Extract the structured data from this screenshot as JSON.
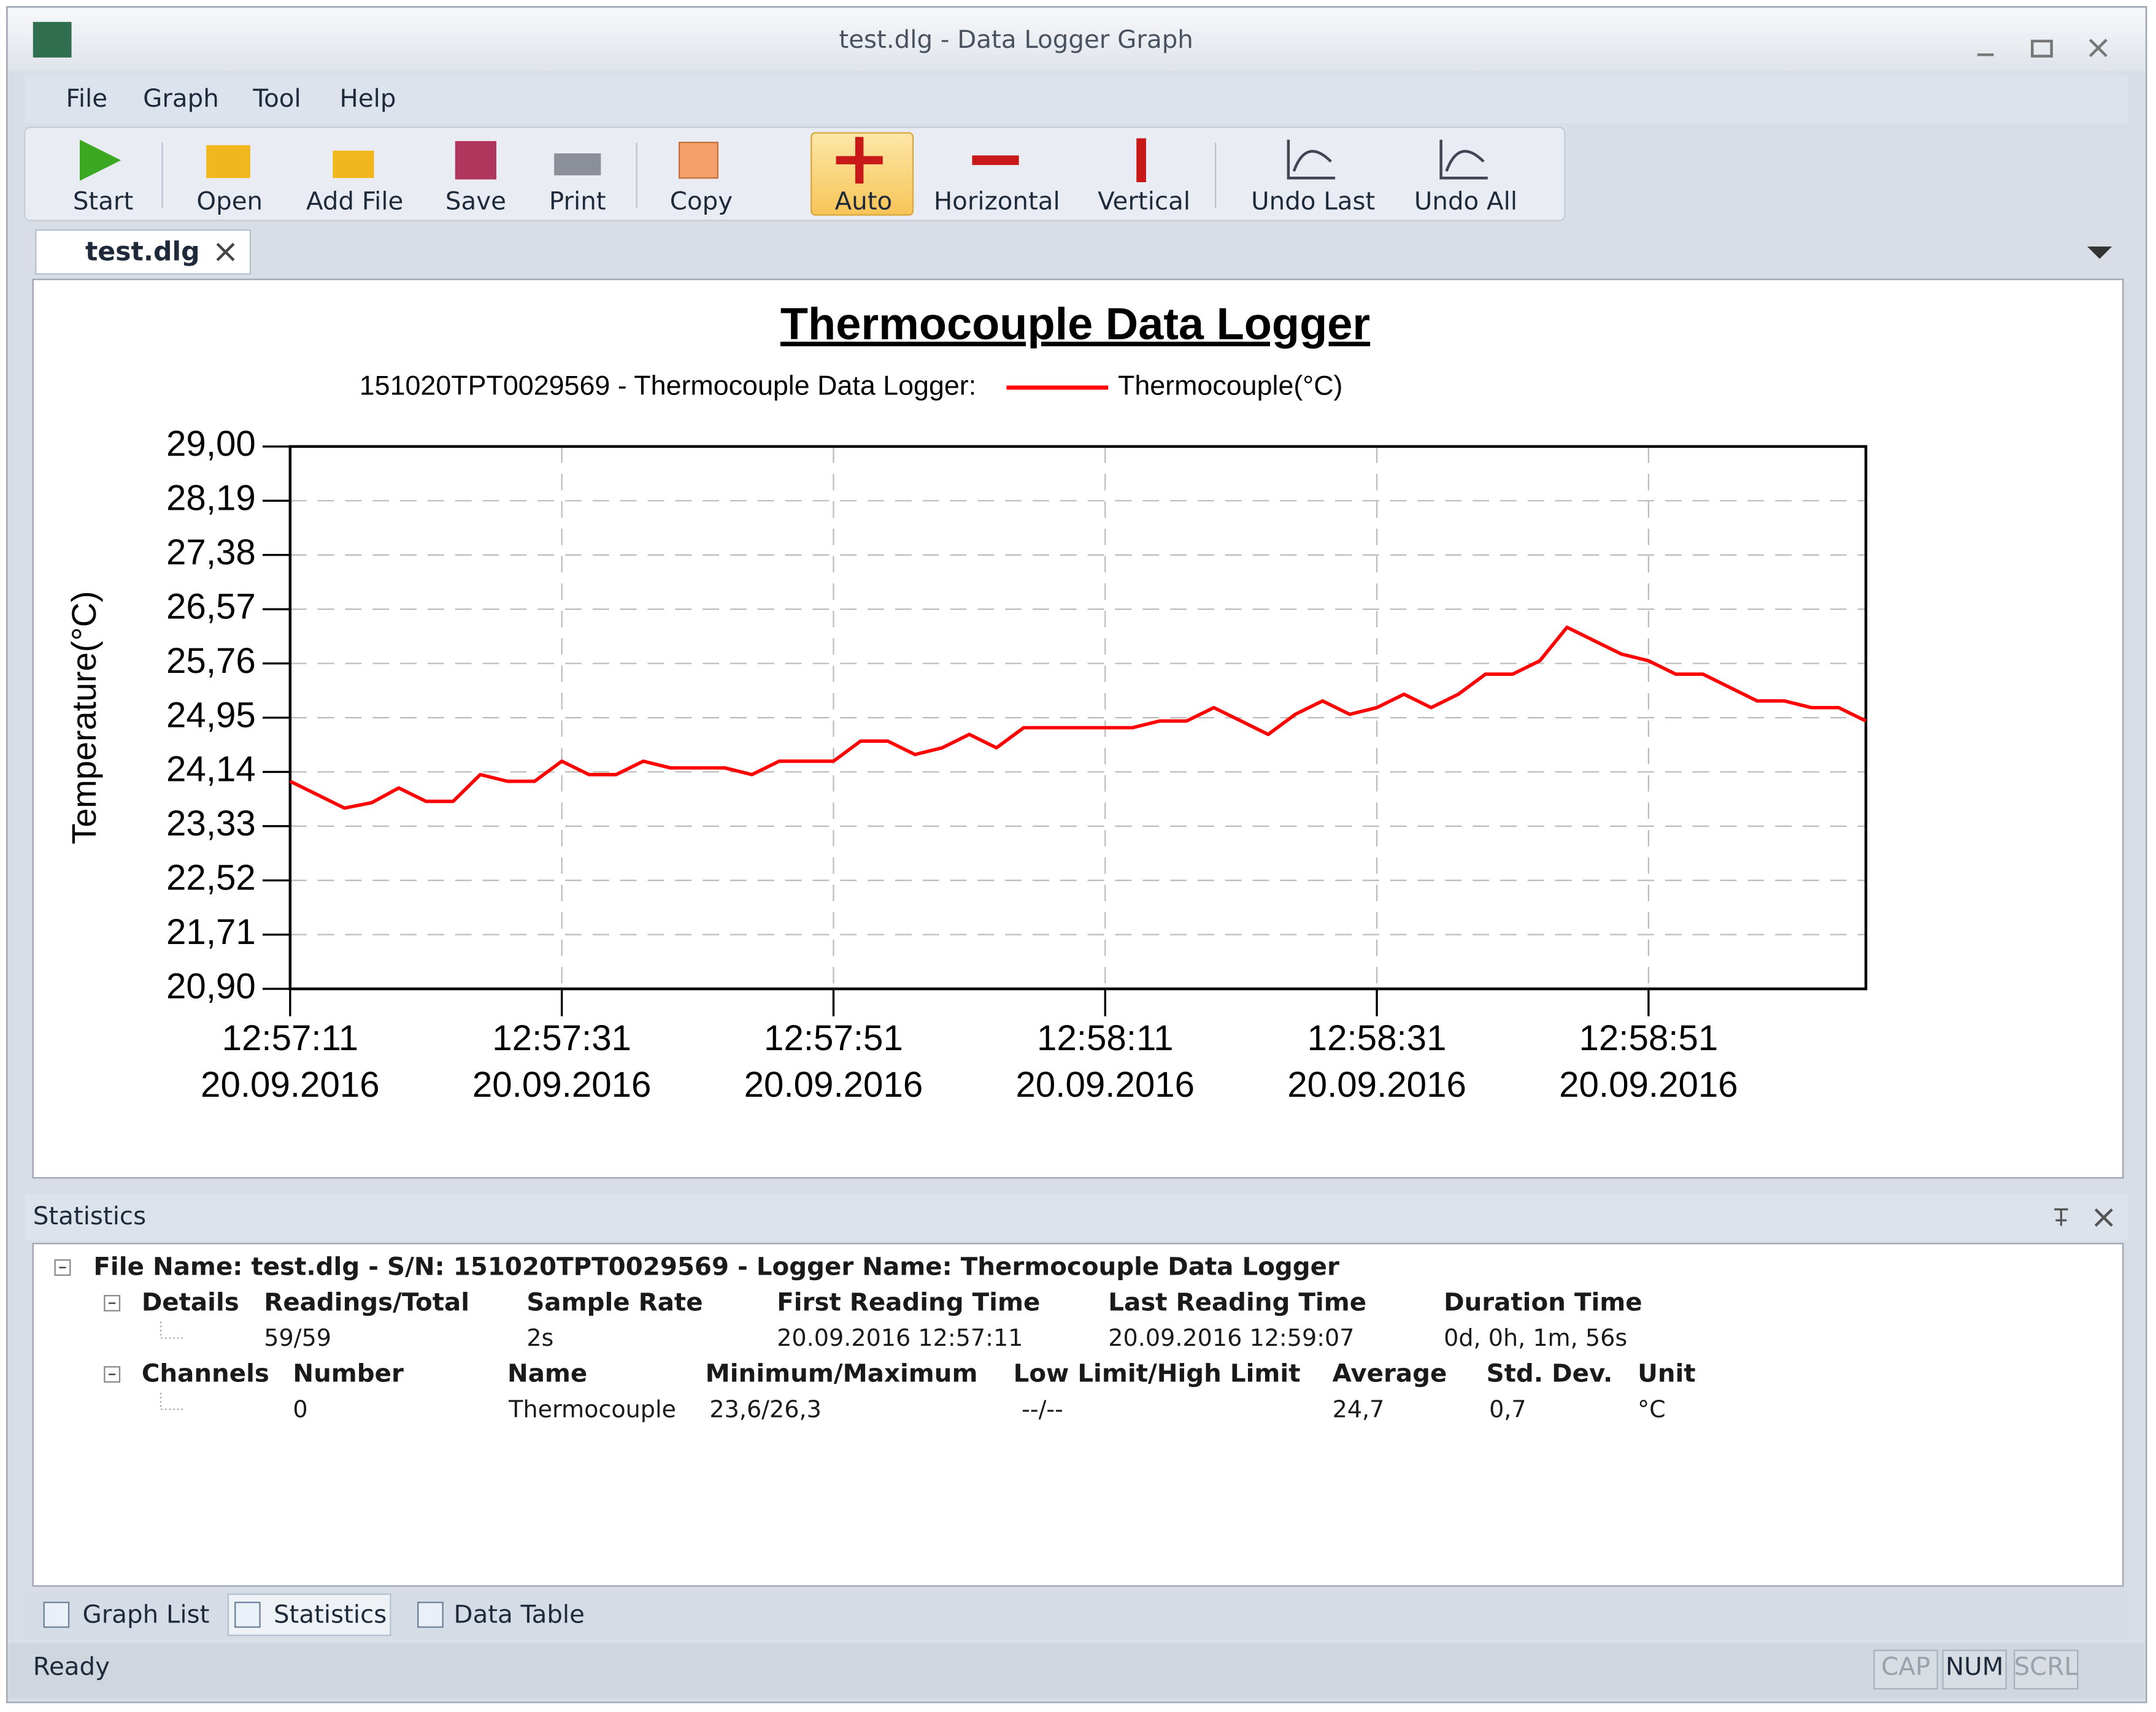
{
  "window": {
    "title": "test.dlg - Data Logger Graph"
  },
  "menu": [
    "File",
    "Graph",
    "Tool",
    "Help"
  ],
  "toolbar": [
    "Start",
    "Open",
    "Add File",
    "Save",
    "Print",
    "Copy",
    "Auto",
    "Horizontal",
    "Vertical",
    "Undo Last",
    "Undo All"
  ],
  "document_tab": "test.dlg",
  "chart_data": {
    "type": "line",
    "title": "Thermocouple Data Logger",
    "subtitle": "151020TPT0029569 - Thermocouple Data Logger:",
    "y_label": "Temperature(°C)",
    "x": [
      "20.09.2016 12:57:11",
      "20.09.2016 12:57:13",
      "20.09.2016 12:57:15",
      "20.09.2016 12:57:17",
      "20.09.2016 12:57:19",
      "20.09.2016 12:57:21",
      "20.09.2016 12:57:23",
      "20.09.2016 12:57:25",
      "20.09.2016 12:57:27",
      "20.09.2016 12:57:29",
      "20.09.2016 12:57:31",
      "20.09.2016 12:57:33",
      "20.09.2016 12:57:35",
      "20.09.2016 12:57:37",
      "20.09.2016 12:57:39",
      "20.09.2016 12:57:41",
      "20.09.2016 12:57:43",
      "20.09.2016 12:57:45",
      "20.09.2016 12:57:47",
      "20.09.2016 12:57:49",
      "20.09.2016 12:57:51",
      "20.09.2016 12:57:53",
      "20.09.2016 12:57:55",
      "20.09.2016 12:57:57",
      "20.09.2016 12:57:59",
      "20.09.2016 12:58:01",
      "20.09.2016 12:58:03",
      "20.09.2016 12:58:05",
      "20.09.2016 12:58:07",
      "20.09.2016 12:58:09",
      "20.09.2016 12:58:11",
      "20.09.2016 12:58:13",
      "20.09.2016 12:58:15",
      "20.09.2016 12:58:17",
      "20.09.2016 12:58:19",
      "20.09.2016 12:58:21",
      "20.09.2016 12:58:23",
      "20.09.2016 12:58:25",
      "20.09.2016 12:58:27",
      "20.09.2016 12:58:29",
      "20.09.2016 12:58:31",
      "20.09.2016 12:58:33",
      "20.09.2016 12:58:35",
      "20.09.2016 12:58:37",
      "20.09.2016 12:58:39",
      "20.09.2016 12:58:41",
      "20.09.2016 12:58:43",
      "20.09.2016 12:58:45",
      "20.09.2016 12:58:47",
      "20.09.2016 12:58:49",
      "20.09.2016 12:58:51",
      "20.09.2016 12:58:53",
      "20.09.2016 12:58:55",
      "20.09.2016 12:58:57",
      "20.09.2016 12:58:59",
      "20.09.2016 12:59:01",
      "20.09.2016 12:59:03",
      "20.09.2016 12:59:05",
      "20.09.2016 12:59:07"
    ],
    "series": [
      {
        "name": "Thermocouple(°C)",
        "color": "#ff0000",
        "values": [
          24.0,
          23.8,
          23.6,
          23.68,
          23.9,
          23.7,
          23.7,
          24.1,
          24.0,
          24.0,
          24.3,
          24.1,
          24.1,
          24.3,
          24.2,
          24.2,
          24.2,
          24.1,
          24.3,
          24.3,
          24.3,
          24.6,
          24.6,
          24.4,
          24.5,
          24.7,
          24.5,
          24.8,
          24.8,
          24.8,
          24.8,
          24.8,
          24.9,
          24.9,
          25.1,
          24.9,
          24.7,
          25.0,
          25.2,
          25.0,
          25.1,
          25.3,
          25.1,
          25.3,
          25.6,
          25.6,
          25.8,
          26.3,
          26.1,
          25.9,
          25.8,
          25.6,
          25.6,
          25.4,
          25.2,
          25.2,
          25.1,
          25.1,
          24.9
        ]
      }
    ],
    "xlim": [
      "20.09.2016 12:57:11",
      "20.09.2016 12:59:07"
    ],
    "xticks": [
      {
        "value": "20.09.2016 12:57:11",
        "label": [
          "12:57:11",
          "20.09.2016"
        ]
      },
      {
        "value": "20.09.2016 12:57:31",
        "label": [
          "12:57:31",
          "20.09.2016"
        ]
      },
      {
        "value": "20.09.2016 12:57:51",
        "label": [
          "12:57:51",
          "20.09.2016"
        ]
      },
      {
        "value": "20.09.2016 12:58:11",
        "label": [
          "12:58:11",
          "20.09.2016"
        ]
      },
      {
        "value": "20.09.2016 12:58:31",
        "label": [
          "12:58:31",
          "20.09.2016"
        ]
      },
      {
        "value": "20.09.2016 12:58:51",
        "label": [
          "12:58:51",
          "20.09.2016"
        ]
      }
    ],
    "ylim": [
      20.9,
      29.0
    ],
    "yticks": [
      {
        "value": 20.9,
        "label": "20,90"
      },
      {
        "value": 21.71,
        "label": "21,71"
      },
      {
        "value": 22.52,
        "label": "22,52"
      },
      {
        "value": 23.33,
        "label": "23,33"
      },
      {
        "value": 24.14,
        "label": "24,14"
      },
      {
        "value": 24.95,
        "label": "24,95"
      },
      {
        "value": 25.76,
        "label": "25,76"
      },
      {
        "value": 26.57,
        "label": "26,57"
      },
      {
        "value": 27.38,
        "label": "27,38"
      },
      {
        "value": 28.19,
        "label": "28,19"
      },
      {
        "value": 29.0,
        "label": "29,00"
      }
    ],
    "grid": true
  },
  "statistics": {
    "title": "Statistics",
    "file_line": "File Name: test.dlg - S/N: 151020TPT0029569 - Logger Name: Thermocouple Data Logger",
    "details": {
      "label": "Details",
      "headers": [
        "Readings/Total",
        "Sample Rate",
        "First Reading Time",
        "Last Reading Time",
        "Duration Time"
      ],
      "values": [
        "59/59",
        "2s",
        "20.09.2016 12:57:11",
        "20.09.2016 12:59:07",
        "0d, 0h, 1m, 56s"
      ]
    },
    "channels": {
      "label": "Channels",
      "headers": [
        "Number",
        "Name",
        "Minimum/Maximum",
        "Low Limit/High Limit",
        "Average",
        "Std. Dev.",
        "Unit"
      ],
      "values": [
        "0",
        "Thermocouple",
        "23,6/26,3",
        "--/--",
        "24,7",
        "0,7",
        "°C"
      ]
    }
  },
  "bottom_tabs": [
    "Graph List",
    "Statistics",
    "Data Table"
  ],
  "status": {
    "text": "Ready",
    "indicators": [
      "CAP",
      "NUM",
      "SCRL"
    ]
  }
}
